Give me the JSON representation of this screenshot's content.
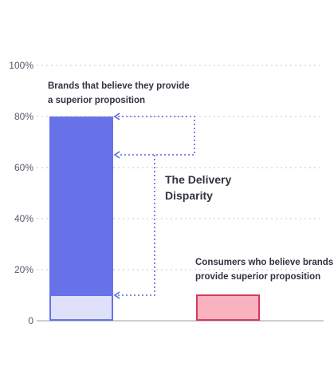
{
  "chart_data": {
    "type": "bar",
    "ylim": [
      0,
      100
    ],
    "yticks": [
      0,
      20,
      40,
      60,
      80,
      100
    ],
    "ytick_labels": [
      "0",
      "20%",
      "40%",
      "60%",
      "80%",
      "100%"
    ],
    "grid": true,
    "bars": [
      {
        "label_lines": [
          "Brands that believe they provide",
          "a superior proposition"
        ],
        "value": 80,
        "inner_value": 10,
        "color": "#6772e9",
        "inner_color": "#dfe1fb",
        "border_color": "#6772e9"
      },
      {
        "label_lines": [
          "Consumers who believe brands",
          "provide superior proposition"
        ],
        "value": 10,
        "color": "#f9b2c0",
        "border_color": "#d53a5c"
      }
    ],
    "brackets": [
      {
        "from": 80,
        "to": 65
      },
      {
        "from": 10,
        "to": 65
      }
    ],
    "annotation_lines": [
      "The Delivery",
      "Disparity"
    ],
    "bracket_color": "#5b66e0",
    "grid_color": "#cfd2d8",
    "axis_color": "#9a9ea8"
  }
}
